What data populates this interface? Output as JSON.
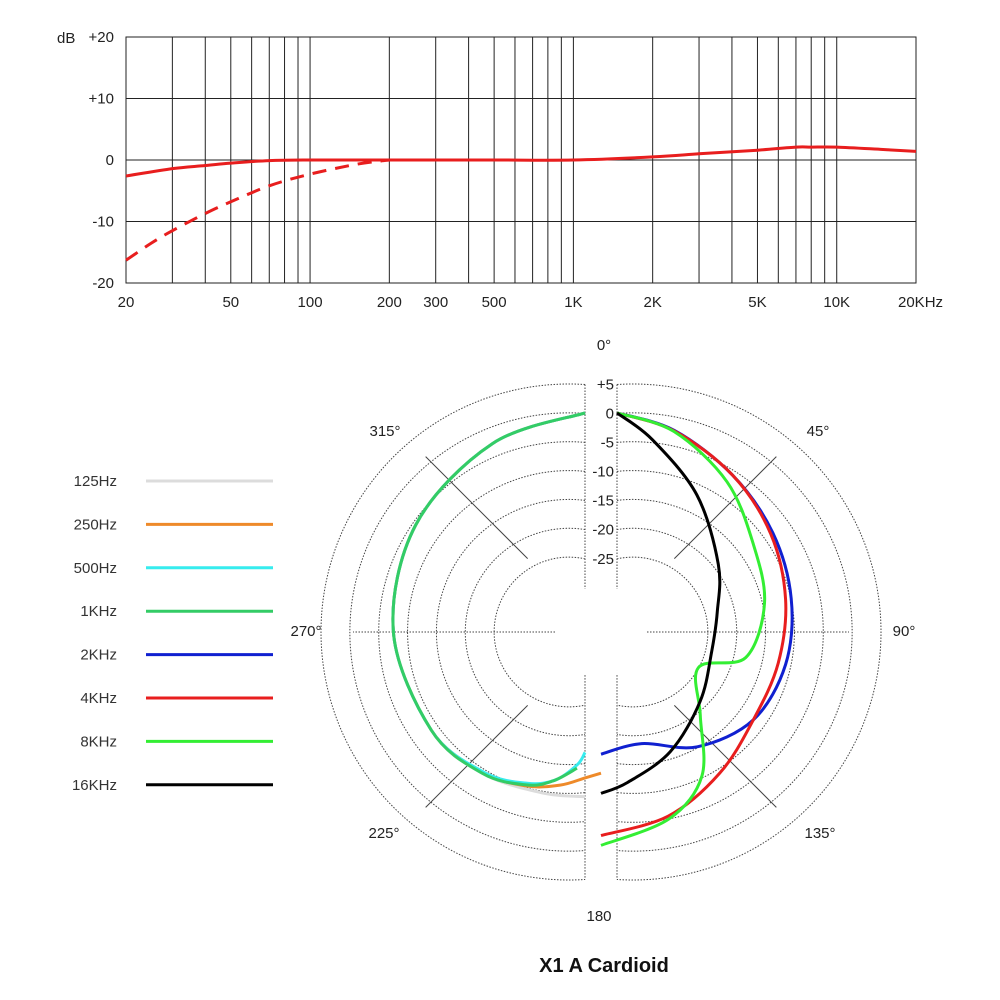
{
  "colors": {
    "125Hz": "#dcdcdc",
    "250Hz": "#ee8a2a",
    "500Hz": "#37ecee",
    "1KHz": "#33cc66",
    "2KHz": "#1020d0",
    "4KHz": "#e81e1e",
    "8KHz": "#33ee33",
    "16KHz": "#000000",
    "response": "#e81e1e"
  },
  "chart_data": [
    {
      "type": "line",
      "scale": "log-x",
      "ylabel": "dB",
      "ylim": [
        -20,
        20
      ],
      "y_ticks": [
        20,
        10,
        0,
        -10,
        -20
      ],
      "y_tick_labels": [
        "+20",
        "+10",
        "0",
        "-10",
        "-20"
      ],
      "xlim": [
        20,
        20000
      ],
      "x_ticks": [
        20,
        50,
        100,
        200,
        300,
        500,
        1000,
        2000,
        5000,
        10000,
        20000
      ],
      "x_tick_labels": [
        "20",
        "50",
        "100",
        "200",
        "300",
        "500",
        "1K",
        "2K",
        "5K",
        "10K",
        "20KHz"
      ],
      "grid": true,
      "series": [
        {
          "style": "solid",
          "x": [
            20,
            30,
            40,
            50,
            70,
            100,
            150,
            200,
            300,
            500,
            1000,
            2000,
            3000,
            5000,
            7000,
            8000,
            10000,
            15000,
            20000
          ],
          "y": [
            -2.6,
            -1.4,
            -0.9,
            -0.5,
            -0.1,
            0,
            0,
            0,
            0,
            0,
            0,
            0.5,
            1.0,
            1.6,
            2.1,
            2.1,
            2.1,
            1.7,
            1.4
          ]
        },
        {
          "style": "dashed",
          "x": [
            20,
            25,
            30,
            40,
            50,
            70,
            100,
            150,
            200
          ],
          "y": [
            -16.3,
            -13.5,
            -11.5,
            -8.7,
            -6.8,
            -4.2,
            -2.3,
            -0.7,
            0
          ]
        }
      ]
    },
    {
      "type": "polar",
      "title": "X1 A Cardioid",
      "angle_labels": [
        "0°",
        "45°",
        "90°",
        "135°",
        "180",
        "225°",
        "270°",
        "315°"
      ],
      "radial_ticks": [
        5,
        0,
        -5,
        -10,
        -15,
        -20,
        -25
      ],
      "radial_tick_labels": [
        "+5",
        "0",
        "-5",
        "-10",
        "-15",
        "-20",
        "-25"
      ],
      "radial_range_db": [
        -30,
        5
      ],
      "grid": true,
      "legend_position": "left",
      "series": [
        {
          "name": "125Hz",
          "angles": [
            360,
            330,
            300,
            270,
            240,
            220,
            200,
            183
          ],
          "db": [
            0,
            -0.3,
            -0.9,
            -2.0,
            -4.0,
            -6.0,
            -8.3,
            -9.4
          ]
        },
        {
          "name": "250Hz",
          "angles": [
            360,
            330,
            300,
            270,
            240,
            220,
            206,
            195,
            185,
            180
          ],
          "db": [
            0,
            -0.3,
            -0.9,
            -2.0,
            -4.0,
            -6.2,
            -8.3,
            -10.5,
            -12.6,
            -13.5
          ]
        },
        {
          "name": "500Hz",
          "angles": [
            360,
            330,
            300,
            270,
            240,
            220,
            206,
            197,
            190,
            186
          ],
          "db": [
            0,
            -0.3,
            -0.9,
            -2.0,
            -4.0,
            -6.3,
            -8.8,
            -11.2,
            -14.7,
            -17.0
          ]
        },
        {
          "name": "1KHz",
          "angles": [
            360,
            330,
            300,
            270,
            240,
            220,
            206,
            198,
            190
          ],
          "db": [
            0,
            -0.3,
            -0.9,
            -2.0,
            -4.0,
            -6.0,
            -8.5,
            -10.8,
            -14.0
          ]
        },
        {
          "name": "2KHz",
          "angles": [
            0,
            20,
            40,
            60,
            80,
            100,
            120,
            140,
            160,
            180
          ],
          "db": [
            0,
            -0.8,
            -2.5,
            -3.6,
            -4.5,
            -5.5,
            -7.5,
            -12.0,
            -17.4,
            -16.8
          ]
        },
        {
          "name": "4KHz",
          "angles": [
            0,
            20,
            40,
            60,
            80,
            100,
            120,
            140,
            160,
            180
          ],
          "db": [
            0,
            -0.9,
            -2.5,
            -4.0,
            -5.5,
            -6.8,
            -7.5,
            -6.0,
            -4.0,
            -2.7
          ]
        },
        {
          "name": "8KHz",
          "angles": [
            0,
            20,
            40,
            60,
            80,
            100,
            110,
            130,
            145,
            160,
            180
          ],
          "db": [
            0,
            -1.0,
            -4.0,
            -7.5,
            -9.2,
            -12.5,
            -20.0,
            -15.5,
            -7.5,
            -3.5,
            -1.0
          ]
        },
        {
          "name": "16KHz",
          "angles": [
            0,
            15,
            35,
            60,
            80,
            100,
            125,
            150,
            170,
            180
          ],
          "db": [
            0,
            -3.5,
            -9.0,
            -14.5,
            -17.5,
            -18.5,
            -17.0,
            -14.0,
            -11.5,
            -10.0
          ]
        }
      ]
    }
  ]
}
